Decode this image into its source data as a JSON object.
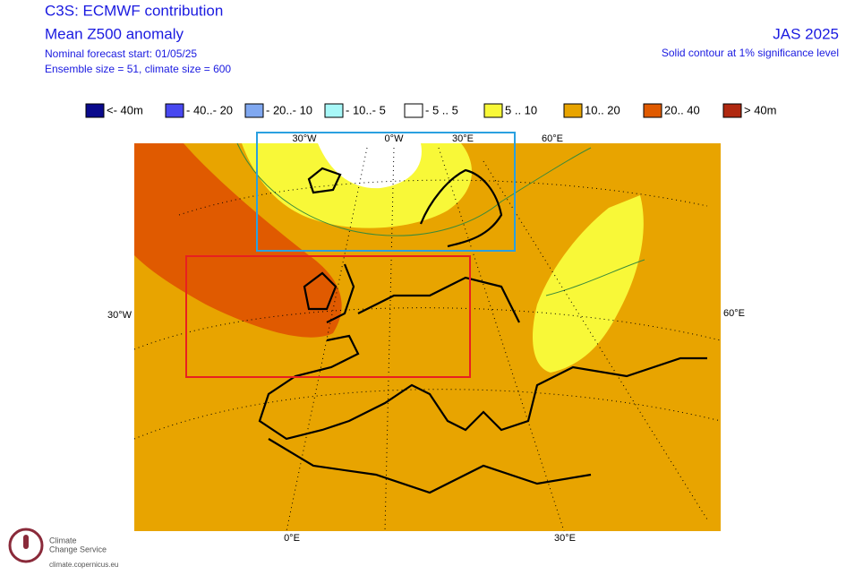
{
  "header": {
    "title": "C3S: ECMWF contribution",
    "subtitle": "Mean Z500 anomaly",
    "forecast_start": "Nominal forecast start: 01/05/25",
    "ensemble": "Ensemble size = 51, climate size = 600",
    "season": "JAS 2025",
    "note": "Solid contour at 1% significance level"
  },
  "legend": [
    {
      "label": "<- 40m",
      "color": "#0a0a8c"
    },
    {
      "label": "- 40..- 20",
      "color": "#4848f0"
    },
    {
      "label": "- 20..- 10",
      "color": "#80a8f0"
    },
    {
      "label": "- 10..- 5",
      "color": "#a8f8f8"
    },
    {
      "label": "- 5 .. 5",
      "color": "#ffffff"
    },
    {
      "label": "5 .. 10",
      "color": "#f8f838"
    },
    {
      "label": "10.. 20",
      "color": "#e8a400"
    },
    {
      "label": "20.. 40",
      "color": "#e05a00"
    },
    {
      "label": "> 40m",
      "color": "#b02810"
    }
  ],
  "map_labels": {
    "top": [
      "30°W",
      "0°W",
      "30°E",
      "60°E"
    ],
    "left": "30°W",
    "right": "60°E",
    "bottom": [
      "0°E",
      "30°E"
    ]
  },
  "logo": {
    "line1": "Climate",
    "line2": "Change Service",
    "url": "climate.copernicus.eu"
  }
}
